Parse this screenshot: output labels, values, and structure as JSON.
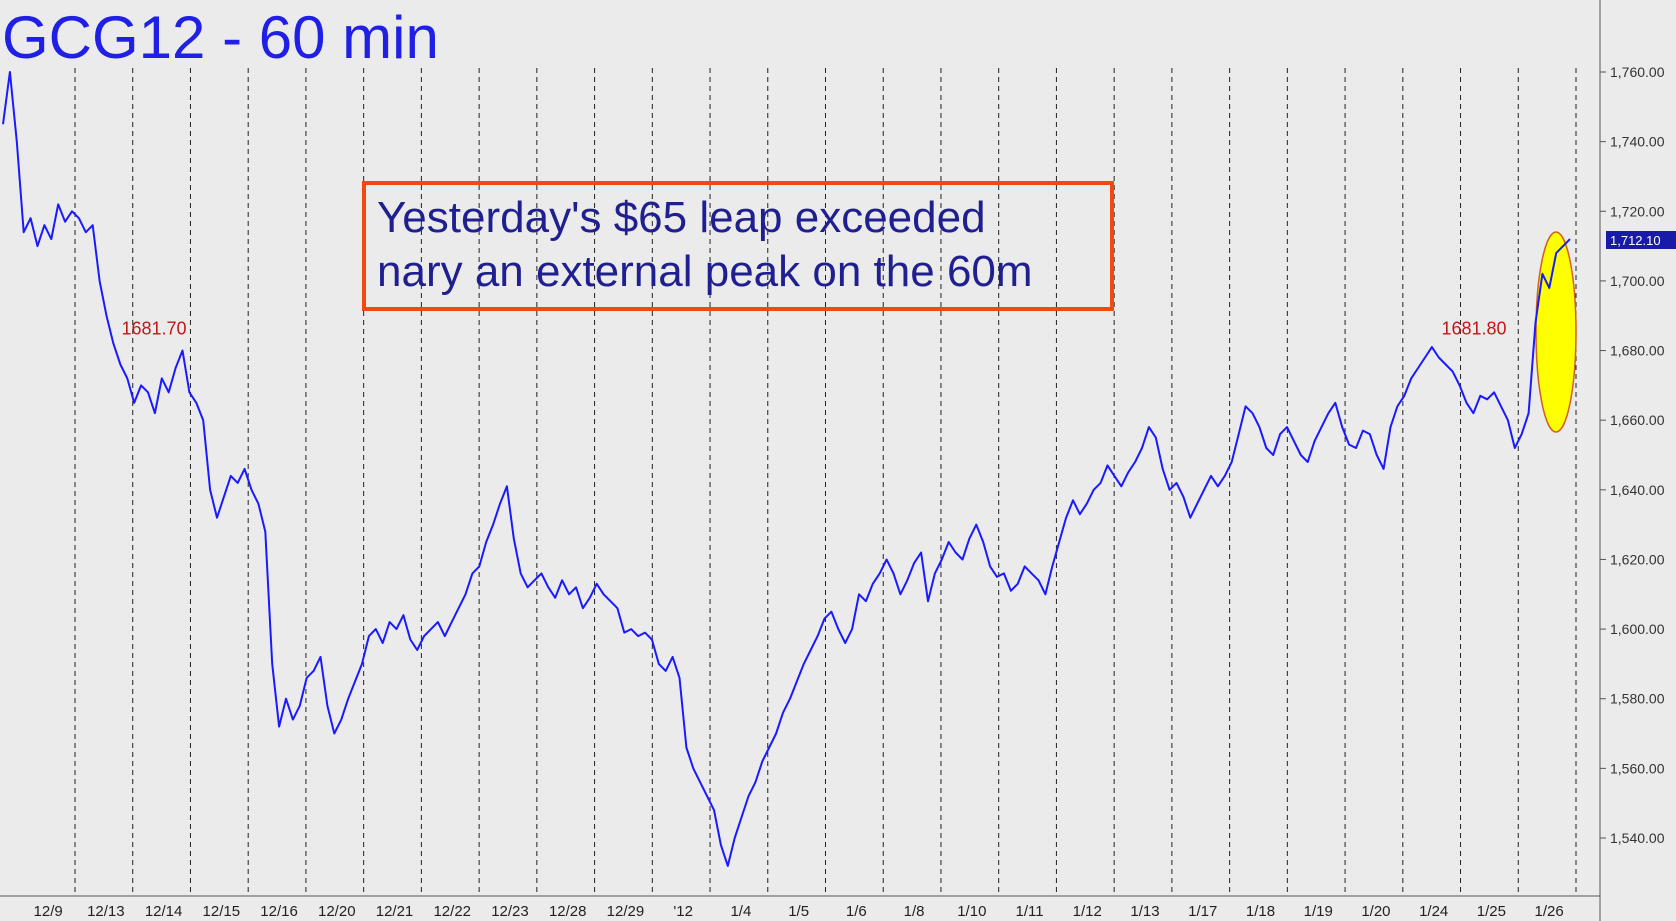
{
  "chart_data": {
    "type": "line",
    "title": "GCG12 - 60 min",
    "annotation_lines": [
      "Yesterday's $65 leap exceeded",
      "nary an external peak on the 60m"
    ],
    "ylim": [
      1525,
      1765
    ],
    "y_ticks": [
      {
        "value": 1540,
        "label": "1,540.00"
      },
      {
        "value": 1560,
        "label": "1,560.00"
      },
      {
        "value": 1580,
        "label": "1,580.00"
      },
      {
        "value": 1600,
        "label": "1,600.00"
      },
      {
        "value": 1620,
        "label": "1,620.00"
      },
      {
        "value": 1640,
        "label": "1,640.00"
      },
      {
        "value": 1660,
        "label": "1,660.00"
      },
      {
        "value": 1680,
        "label": "1,680.00"
      },
      {
        "value": 1700,
        "label": "1,700.00"
      },
      {
        "value": 1720,
        "label": "1,720.00"
      },
      {
        "value": 1740,
        "label": "1,740.00"
      },
      {
        "value": 1760,
        "label": "1,760.00"
      }
    ],
    "x_ticks": [
      "12/9",
      "12/13",
      "12/14",
      "12/15",
      "12/16",
      "12/20",
      "12/21",
      "12/22",
      "12/23",
      "12/28",
      "12/29",
      "'12",
      "1/4",
      "1/5",
      "1/6",
      "1/8",
      "1/10",
      "1/11",
      "1/12",
      "1/13",
      "1/17",
      "1/18",
      "1/19",
      "1/20",
      "1/24",
      "1/25",
      "1/26"
    ],
    "last_price": {
      "value": 1712.1,
      "label": "1,712.10"
    },
    "peak_labels": [
      {
        "label": "1681.70",
        "value": 1681.7
      },
      {
        "label": "1681.80",
        "value": 1681.8
      }
    ],
    "highlight": "ellipse around final rally (1/25-1/26)",
    "grid": "vertical dashed session separators",
    "series": [
      {
        "color": "#1a1aff",
        "values": [
          1745,
          1760,
          1740,
          1714,
          1718,
          1710,
          1716,
          1712,
          1722,
          1717,
          1720,
          1718,
          1714,
          1716,
          1700,
          1690,
          1682,
          1676,
          1672,
          1665,
          1670,
          1668,
          1662,
          1672,
          1668,
          1675,
          1680,
          1668,
          1665,
          1660,
          1640,
          1632,
          1638,
          1644,
          1642,
          1646,
          1640,
          1636,
          1628,
          1590,
          1572,
          1580,
          1574,
          1578,
          1586,
          1588,
          1592,
          1578,
          1570,
          1574,
          1580,
          1585,
          1590,
          1598,
          1600,
          1596,
          1602,
          1600,
          1604,
          1597,
          1594,
          1598,
          1600,
          1602,
          1598,
          1602,
          1606,
          1610,
          1616,
          1618,
          1625,
          1630,
          1636,
          1641,
          1626,
          1616,
          1612,
          1614,
          1616,
          1612,
          1609,
          1614,
          1610,
          1612,
          1606,
          1609,
          1613,
          1610,
          1608,
          1606,
          1599,
          1600,
          1598,
          1599,
          1597,
          1590,
          1588,
          1592,
          1586,
          1566,
          1560,
          1556,
          1552,
          1548,
          1538,
          1532,
          1540,
          1546,
          1552,
          1556,
          1562,
          1566,
          1570,
          1576,
          1580,
          1585,
          1590,
          1594,
          1598,
          1603,
          1605,
          1600,
          1596,
          1600,
          1610,
          1608,
          1613,
          1616,
          1620,
          1616,
          1610,
          1614,
          1619,
          1622,
          1608,
          1616,
          1620,
          1625,
          1622,
          1620,
          1626,
          1630,
          1625,
          1618,
          1615,
          1616,
          1611,
          1613,
          1618,
          1616,
          1614,
          1610,
          1618,
          1625,
          1632,
          1637,
          1633,
          1636,
          1640,
          1642,
          1647,
          1644,
          1641,
          1645,
          1648,
          1652,
          1658,
          1655,
          1646,
          1640,
          1642,
          1638,
          1632,
          1636,
          1640,
          1644,
          1641,
          1644,
          1648,
          1656,
          1664,
          1662,
          1658,
          1652,
          1650,
          1656,
          1658,
          1654,
          1650,
          1648,
          1654,
          1658,
          1662,
          1665,
          1658,
          1653,
          1652,
          1657,
          1656,
          1650,
          1646,
          1658,
          1664,
          1667,
          1672,
          1675,
          1678,
          1681,
          1678,
          1676,
          1674,
          1670,
          1665,
          1662,
          1667,
          1666,
          1668,
          1664,
          1660,
          1652,
          1656,
          1662,
          1688,
          1702,
          1698,
          1708,
          1710,
          1712
        ]
      }
    ]
  }
}
